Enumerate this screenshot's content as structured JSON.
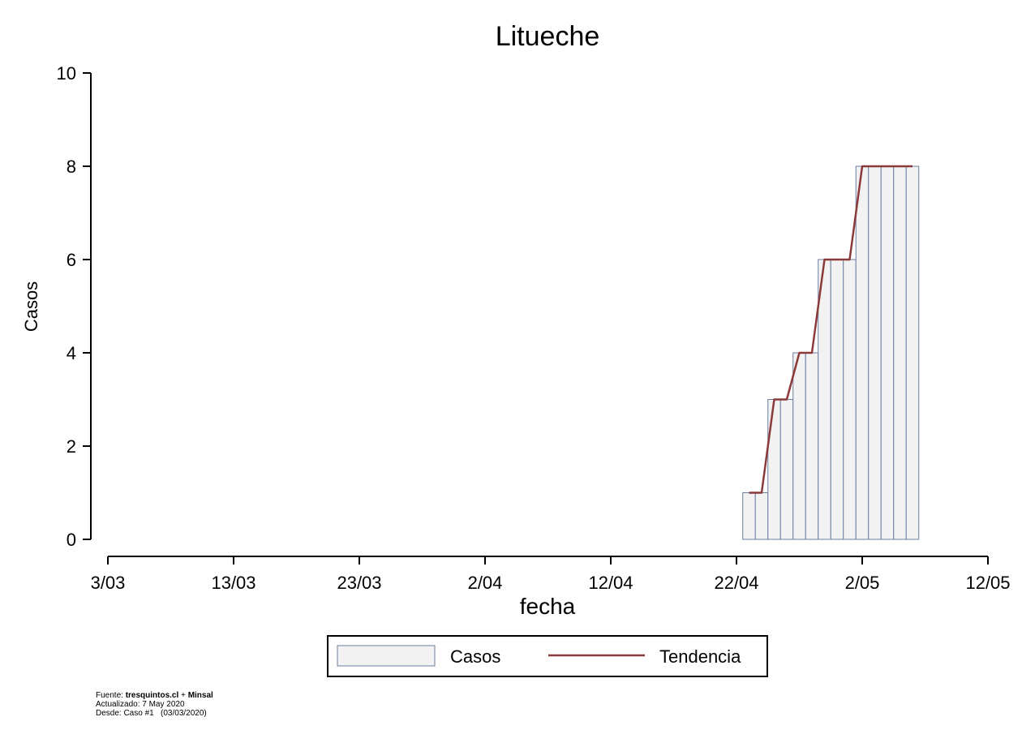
{
  "chart_data": {
    "type": "bar",
    "title": "Litueche",
    "xlabel": "fecha",
    "ylabel": "Casos",
    "ylim": [
      0,
      10
    ],
    "yticks": [
      0,
      2,
      4,
      6,
      8,
      10
    ],
    "xlim": [
      "2020-03-03",
      "2020-05-12"
    ],
    "xticks": [
      {
        "date": "2020-03-03",
        "label": "3/03"
      },
      {
        "date": "2020-03-13",
        "label": "13/03"
      },
      {
        "date": "2020-03-23",
        "label": "23/03"
      },
      {
        "date": "2020-04-02",
        "label": "2/04"
      },
      {
        "date": "2020-04-12",
        "label": "12/04"
      },
      {
        "date": "2020-04-22",
        "label": "22/04"
      },
      {
        "date": "2020-05-02",
        "label": "2/05"
      },
      {
        "date": "2020-05-12",
        "label": "12/05"
      }
    ],
    "grid": false,
    "legend_position": "bottom",
    "series": [
      {
        "name": "Casos",
        "kind": "bar",
        "color": "#f2f2f2",
        "edge_color": "#6a7fa0",
        "x": [
          "2020-04-23",
          "2020-04-24",
          "2020-04-25",
          "2020-04-26",
          "2020-04-27",
          "2020-04-28",
          "2020-04-29",
          "2020-04-30",
          "2020-05-01",
          "2020-05-02",
          "2020-05-03",
          "2020-05-04",
          "2020-05-05",
          "2020-05-06"
        ],
        "values": [
          1,
          1,
          3,
          3,
          4,
          4,
          6,
          6,
          6,
          8,
          8,
          8,
          8,
          8
        ]
      },
      {
        "name": "Tendencia",
        "kind": "line",
        "color": "#8b3a3a",
        "x": [
          "2020-04-23",
          "2020-04-24",
          "2020-04-25",
          "2020-04-26",
          "2020-04-27",
          "2020-04-28",
          "2020-04-29",
          "2020-04-30",
          "2020-05-01",
          "2020-05-02",
          "2020-05-03",
          "2020-05-04",
          "2020-05-05",
          "2020-05-06"
        ],
        "values": [
          1,
          1,
          3,
          3,
          4,
          4,
          6,
          6,
          6,
          8,
          8,
          8,
          8,
          8
        ]
      }
    ]
  },
  "footer": {
    "fuente_prefix": "Fuente: ",
    "fuente_source": "tresquintos.cl",
    "fuente_join": " + ",
    "fuente_minsal": "Minsal",
    "actualizado": "Actualizado: 7 May 2020",
    "desde": "Desde: Caso #1   (03/03/2020)"
  }
}
